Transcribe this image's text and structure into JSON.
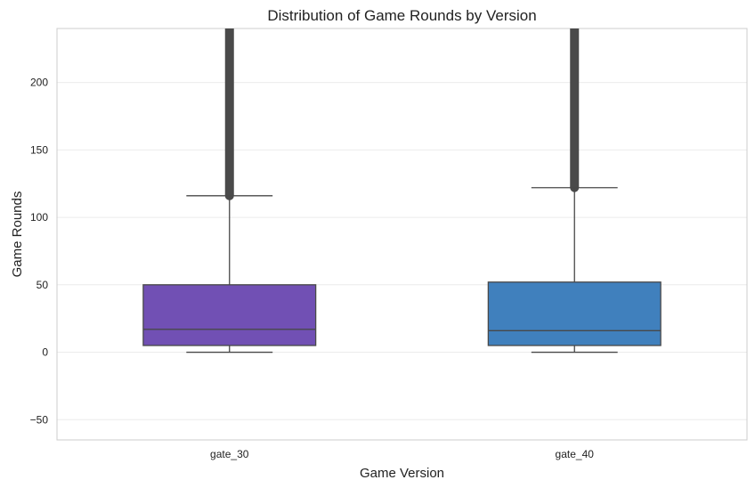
{
  "chart_data": {
    "type": "box",
    "title": "Distribution of Game Rounds by Version",
    "xlabel": "Game Version",
    "ylabel": "Game Rounds",
    "ylim": [
      -65,
      240
    ],
    "yticks": [
      -50,
      0,
      50,
      100,
      150,
      200
    ],
    "ytick_labels": [
      "−50",
      "0",
      "50",
      "100",
      "150",
      "200"
    ],
    "grid": "horizontal",
    "categories": [
      "gate_30",
      "gate_40"
    ],
    "boxes": [
      {
        "category": "gate_30",
        "whisker_low": 0,
        "q1": 5,
        "median": 17,
        "q3": 50,
        "whisker_high": 116,
        "outliers_from": 116,
        "outliers_to": 240,
        "color": "#7150b4"
      },
      {
        "category": "gate_40",
        "whisker_low": 0,
        "q1": 5,
        "median": 16,
        "q3": 52,
        "whisker_high": 122,
        "outliers_from": 122,
        "outliers_to": 240,
        "color": "#4080bd"
      }
    ],
    "colors": {
      "line": "#484848",
      "outlier": "#4a4a4a",
      "grid": "#ebebeb",
      "spine": "#cccccc"
    }
  }
}
